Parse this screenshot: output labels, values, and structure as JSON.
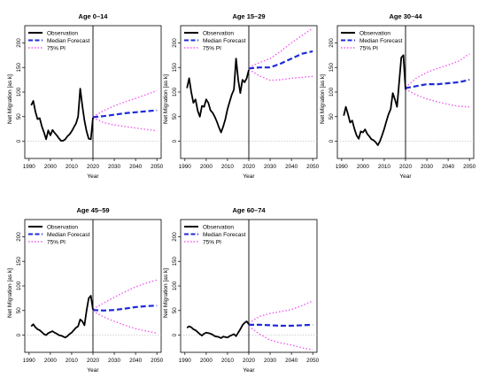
{
  "chart_data": {
    "type": "line",
    "xlabel": "Year",
    "ylabel": "Net Migration [as k]",
    "xlim": [
      1988,
      2052
    ],
    "ylim": [
      -35,
      235
    ],
    "x_ticks": [
      1990,
      2000,
      2010,
      2020,
      2030,
      2040,
      2050
    ],
    "y_ticks": [
      0,
      50,
      100,
      150,
      200
    ],
    "vline_x": 2020,
    "zero_line": 0,
    "legend": {
      "position": "top-left",
      "entries": [
        {
          "label": "Observation",
          "style": "solid",
          "color": "#000000"
        },
        {
          "label": "Median Forecast",
          "style": "dashed",
          "color": "#1f2bd8"
        },
        {
          "label": "75% PI",
          "style": "dotted",
          "color": "#ef5aef"
        }
      ]
    },
    "colors": {
      "observation": "#000000",
      "median": "#1f2bd8",
      "interval": "#ef5aef",
      "zero": "#bbbbbb"
    },
    "panels": [
      {
        "title": "Age 0–14",
        "observation": {
          "x": [
            1991,
            1992,
            1993,
            1994,
            1995,
            1996,
            1997,
            1998,
            1999,
            2000,
            2001,
            2002,
            2003,
            2004,
            2005,
            2006,
            2007,
            2008,
            2009,
            2010,
            2011,
            2012,
            2013,
            2014,
            2015,
            2016,
            2017,
            2018,
            2019,
            2020
          ],
          "y": [
            73,
            82,
            60,
            45,
            47,
            30,
            18,
            4,
            22,
            12,
            23,
            17,
            12,
            6,
            1,
            1,
            4,
            10,
            14,
            20,
            28,
            36,
            50,
            107,
            72,
            42,
            20,
            5,
            4,
            48
          ]
        },
        "median": {
          "x": [
            2020,
            2025,
            2030,
            2035,
            2040,
            2045,
            2050
          ],
          "y": [
            49,
            51,
            54,
            57,
            59,
            61,
            63
          ]
        },
        "upper": {
          "x": [
            2020,
            2025,
            2030,
            2035,
            2040,
            2045,
            2050
          ],
          "y": [
            50,
            62,
            72,
            80,
            87,
            95,
            103
          ]
        },
        "lower": {
          "x": [
            2020,
            2025,
            2030,
            2035,
            2040,
            2045,
            2050
          ],
          "y": [
            48,
            38,
            33,
            30,
            27,
            24,
            21
          ]
        }
      },
      {
        "title": "Age 15–29",
        "observation": {
          "x": [
            1991,
            1992,
            1993,
            1994,
            1995,
            1996,
            1997,
            1998,
            1999,
            2000,
            2001,
            2002,
            2003,
            2004,
            2005,
            2006,
            2007,
            2008,
            2009,
            2010,
            2011,
            2012,
            2013,
            2014,
            2015,
            2016,
            2017,
            2018,
            2019,
            2020
          ],
          "y": [
            108,
            128,
            100,
            78,
            85,
            62,
            50,
            72,
            70,
            85,
            78,
            63,
            58,
            50,
            40,
            28,
            18,
            30,
            45,
            65,
            80,
            95,
            105,
            168,
            125,
            98,
            125,
            120,
            128,
            145
          ]
        },
        "median": {
          "x": [
            2020,
            2025,
            2030,
            2035,
            2040,
            2045,
            2050
          ],
          "y": [
            148,
            150,
            150,
            158,
            168,
            178,
            183
          ]
        },
        "upper": {
          "x": [
            2020,
            2025,
            2030,
            2035,
            2040,
            2045,
            2050
          ],
          "y": [
            150,
            160,
            168,
            183,
            200,
            215,
            230
          ]
        },
        "lower": {
          "x": [
            2020,
            2025,
            2030,
            2035,
            2040,
            2045,
            2050
          ],
          "y": [
            146,
            133,
            124,
            125,
            128,
            130,
            132
          ]
        }
      },
      {
        "title": "Age 30–44",
        "observation": {
          "x": [
            1991,
            1992,
            1993,
            1994,
            1995,
            1996,
            1997,
            1998,
            1999,
            2000,
            2001,
            2002,
            2003,
            2004,
            2005,
            2006,
            2007,
            2008,
            2009,
            2010,
            2011,
            2012,
            2013,
            2014,
            2015,
            2016,
            2017,
            2018,
            2019,
            2020
          ],
          "y": [
            52,
            70,
            55,
            38,
            42,
            25,
            12,
            5,
            20,
            18,
            24,
            15,
            10,
            4,
            2,
            -2,
            -8,
            0,
            12,
            25,
            40,
            55,
            65,
            98,
            85,
            70,
            120,
            170,
            175,
            105
          ]
        },
        "median": {
          "x": [
            2020,
            2025,
            2030,
            2035,
            2040,
            2045,
            2050
          ],
          "y": [
            108,
            112,
            116,
            116,
            118,
            120,
            125
          ]
        },
        "upper": {
          "x": [
            2020,
            2025,
            2030,
            2035,
            2040,
            2045,
            2050
          ],
          "y": [
            110,
            128,
            140,
            148,
            155,
            163,
            178
          ]
        },
        "lower": {
          "x": [
            2020,
            2025,
            2030,
            2035,
            2040,
            2045,
            2050
          ],
          "y": [
            106,
            94,
            86,
            80,
            75,
            71,
            70
          ]
        }
      },
      {
        "title": "Age 45–59",
        "observation": {
          "x": [
            1991,
            1992,
            1993,
            1994,
            1995,
            1996,
            1997,
            1998,
            1999,
            2000,
            2001,
            2002,
            2003,
            2004,
            2005,
            2006,
            2007,
            2008,
            2009,
            2010,
            2011,
            2012,
            2013,
            2014,
            2015,
            2016,
            2017,
            2018,
            2019,
            2020
          ],
          "y": [
            18,
            22,
            16,
            12,
            10,
            6,
            2,
            0,
            4,
            6,
            8,
            5,
            3,
            0,
            -1,
            -3,
            -5,
            -2,
            2,
            5,
            10,
            15,
            18,
            32,
            28,
            20,
            50,
            75,
            80,
            52
          ]
        },
        "median": {
          "x": [
            2020,
            2025,
            2030,
            2035,
            2040,
            2045,
            2050
          ],
          "y": [
            51,
            50,
            51,
            54,
            57,
            59,
            60
          ]
        },
        "upper": {
          "x": [
            2020,
            2025,
            2030,
            2035,
            2040,
            2045,
            2050
          ],
          "y": [
            53,
            65,
            77,
            88,
            98,
            106,
            112
          ]
        },
        "lower": {
          "x": [
            2020,
            2025,
            2030,
            2035,
            2040,
            2045,
            2050
          ],
          "y": [
            49,
            37,
            28,
            20,
            13,
            8,
            4
          ]
        }
      },
      {
        "title": "Age 60–74",
        "observation": {
          "x": [
            1991,
            1992,
            1993,
            1994,
            1995,
            1996,
            1997,
            1998,
            1999,
            2000,
            2001,
            2002,
            2003,
            2004,
            2005,
            2006,
            2007,
            2008,
            2009,
            2010,
            2011,
            2012,
            2013,
            2014,
            2015,
            2016,
            2017,
            2018,
            2019,
            2020
          ],
          "y": [
            15,
            18,
            16,
            12,
            10,
            6,
            2,
            -1,
            3,
            5,
            4,
            3,
            1,
            -2,
            -3,
            -4,
            -6,
            -3,
            -4,
            -5,
            -2,
            0,
            2,
            -2,
            5,
            12,
            20,
            25,
            28,
            22
          ]
        },
        "median": {
          "x": [
            2020,
            2025,
            2030,
            2035,
            2040,
            2045,
            2050
          ],
          "y": [
            21,
            21,
            20,
            19,
            19,
            20,
            21
          ]
        },
        "upper": {
          "x": [
            2020,
            2025,
            2030,
            2035,
            2040,
            2045,
            2050
          ],
          "y": [
            24,
            38,
            44,
            48,
            52,
            60,
            70
          ]
        },
        "lower": {
          "x": [
            2020,
            2025,
            2030,
            2035,
            2040,
            2045,
            2050
          ],
          "y": [
            18,
            2,
            -10,
            -16,
            -20,
            -26,
            -30
          ]
        }
      }
    ]
  }
}
